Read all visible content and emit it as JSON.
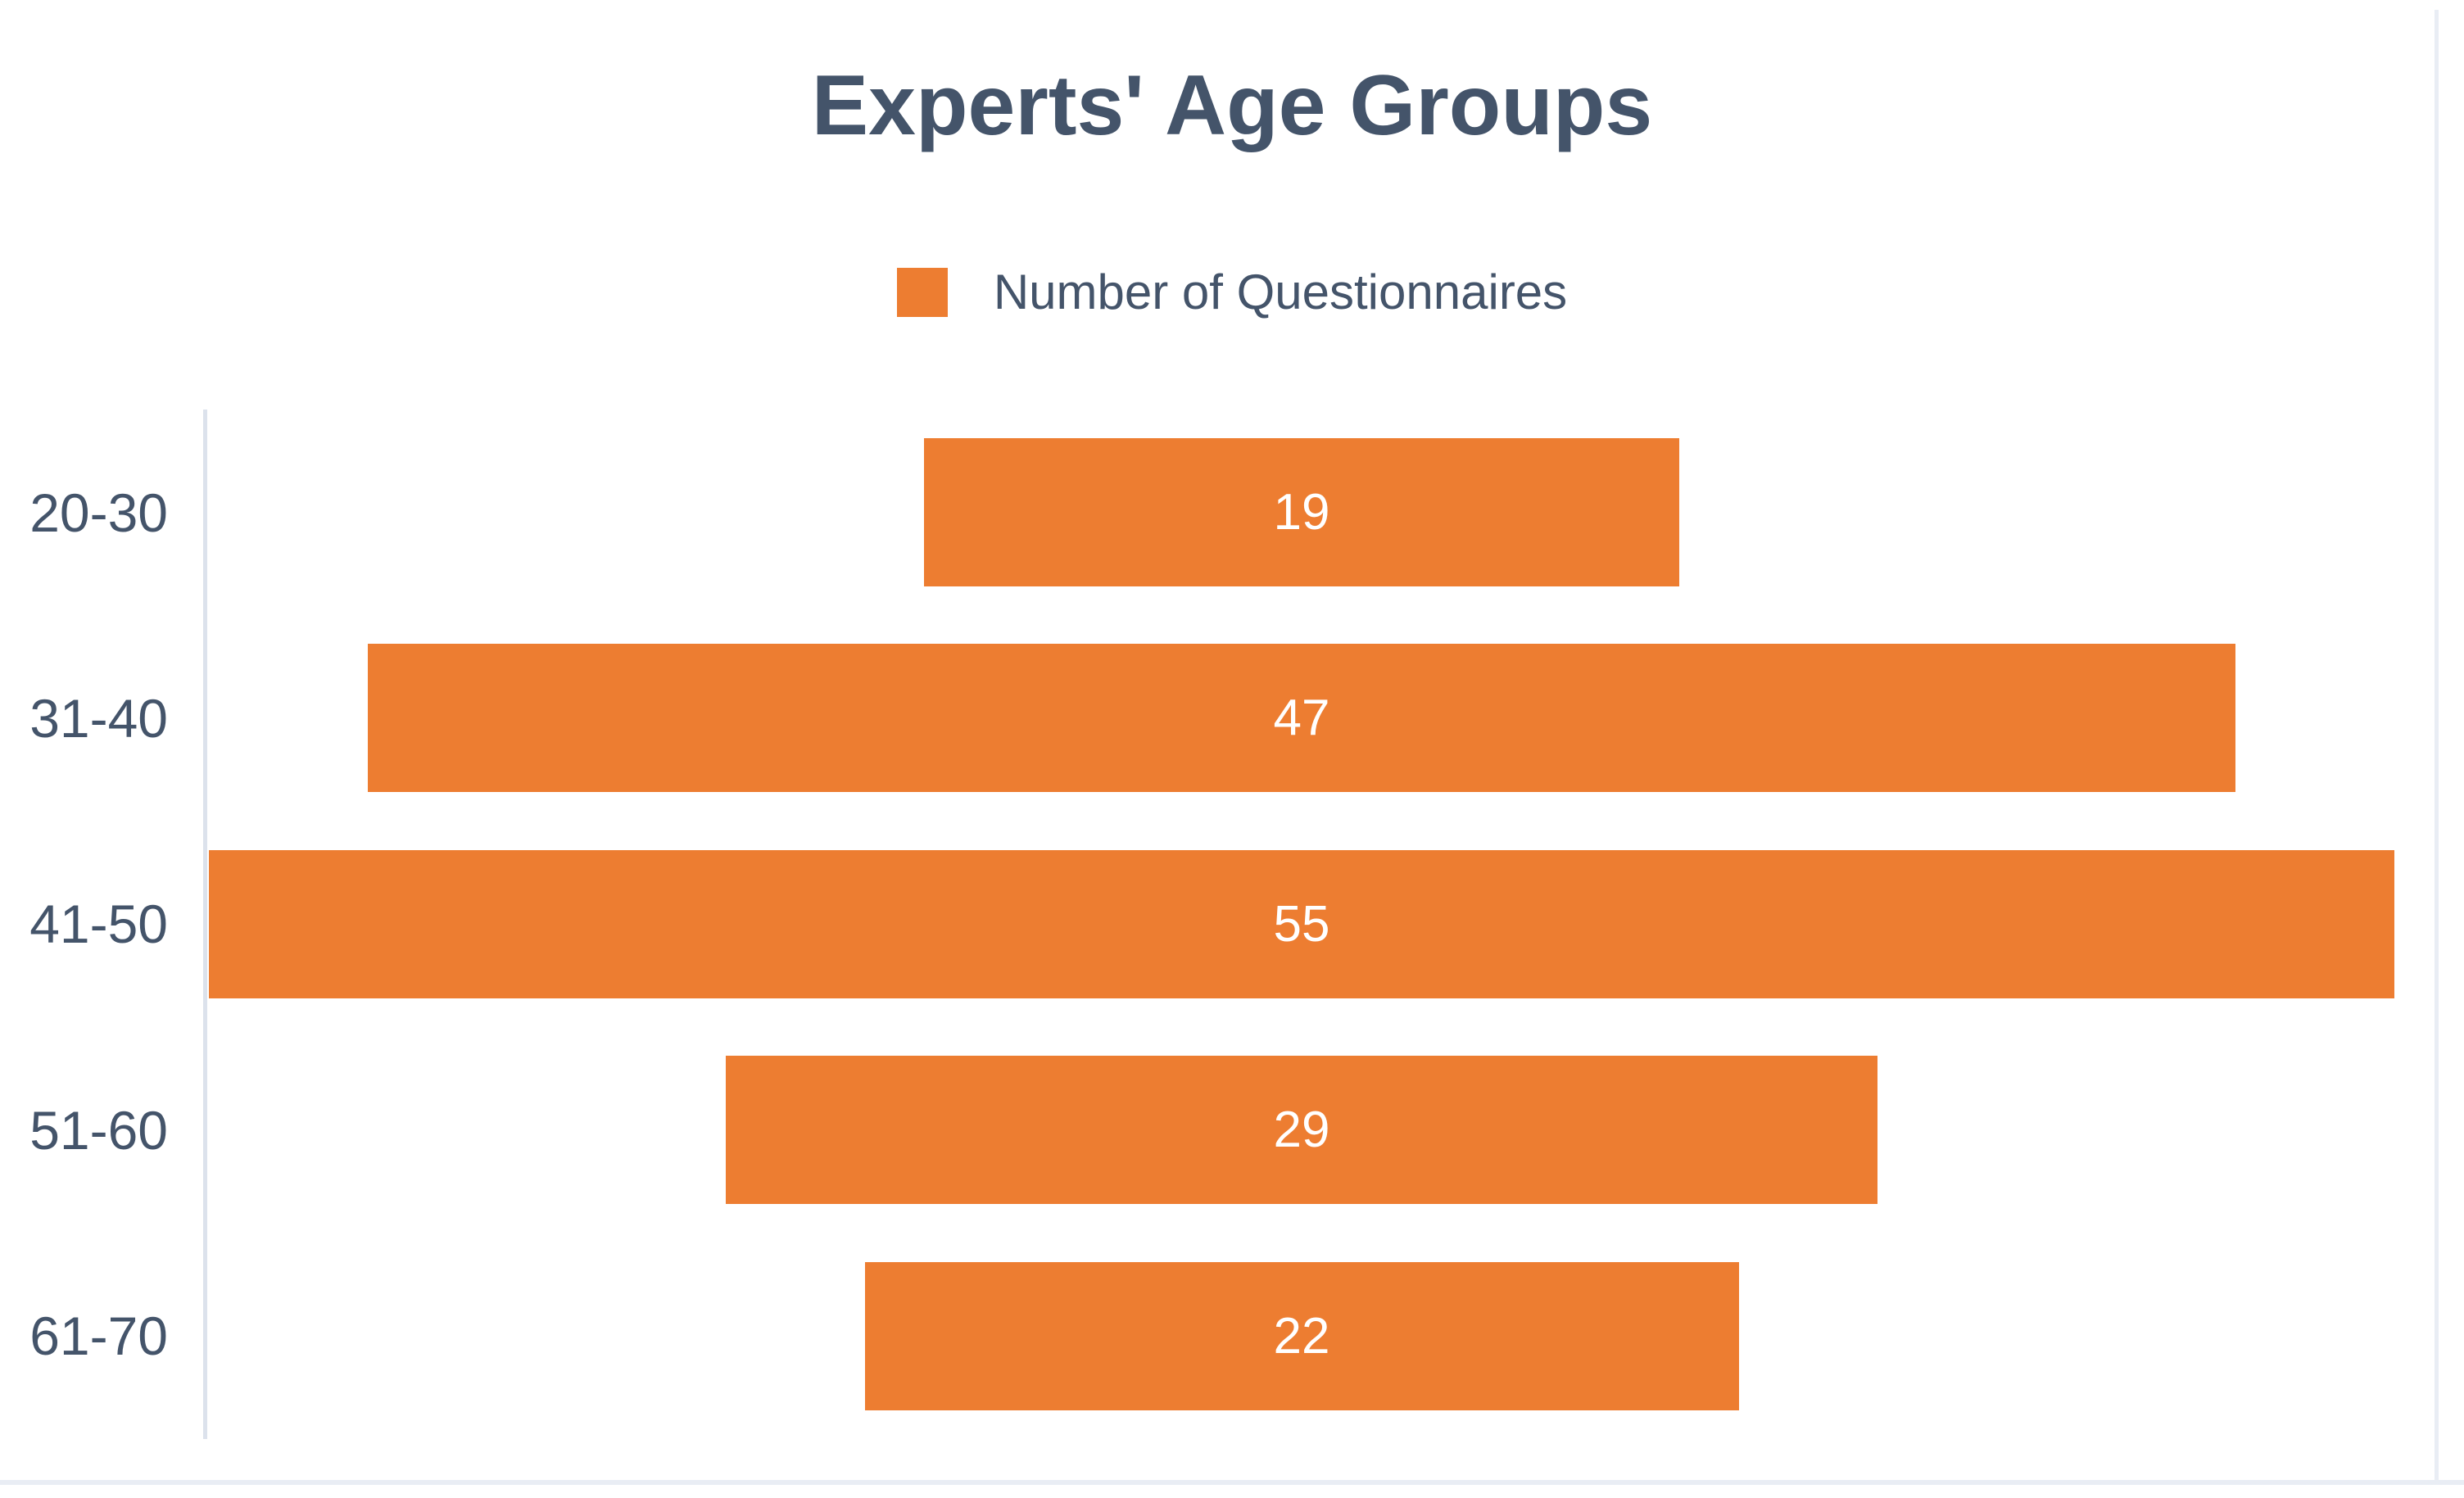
{
  "chart": {
    "title": "Experts' Age Groups",
    "legend_label": "Number of Questionnaires"
  },
  "chart_data": {
    "type": "bar",
    "orientation": "horizontal-centered",
    "title": "Experts' Age Groups",
    "categories": [
      "20-30",
      "31-40",
      "41-50",
      "51-60",
      "61-70"
    ],
    "series": [
      {
        "name": "Number of Questionnaires",
        "values": [
          19,
          47,
          55,
          29,
          22
        ]
      }
    ],
    "max_value": 55,
    "xlabel": "",
    "ylabel": "",
    "grid": false,
    "legend_position": "top-center",
    "value_labels": "inside-center",
    "bar_color": "#ED7D31",
    "value_label_color": "#FFFFFF",
    "text_color": "#44546A",
    "axis_line_color": "#DCE2EC",
    "window_edge_color": "#E9EDF4"
  }
}
